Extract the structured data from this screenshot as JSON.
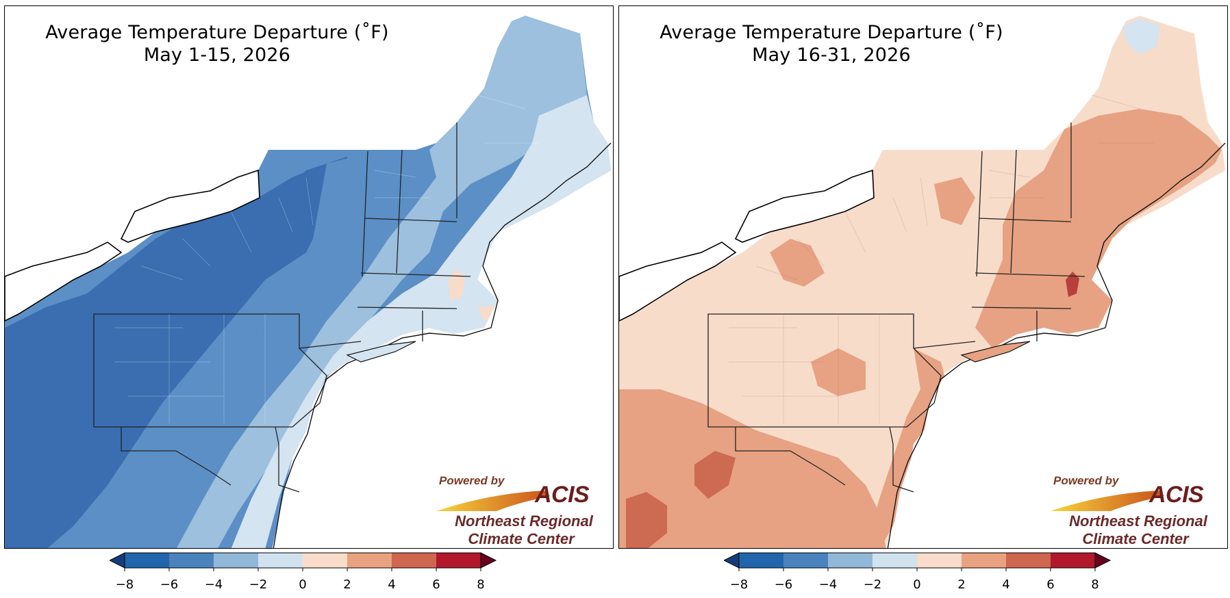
{
  "panels": [
    {
      "title_line1": "Average Temperature Departure ($^\\circ$F)",
      "title_display_line1": "Average Temperature Departure (˚F)",
      "title_line2": "May 1-15, 2026",
      "dominant_class": "cool"
    },
    {
      "title_line1": "Average Temperature Departure ($^\\circ$F)",
      "title_display_line1": "Average Temperature Departure (˚F)",
      "title_line2": "May 16-31, 2026",
      "dominant_class": "warm"
    }
  ],
  "logo": {
    "powered_by": "Powered by",
    "acis": "ACIS",
    "line1": "Northeast Regional",
    "line2": "Climate Center"
  },
  "colorbar": {
    "ticks": [
      "−8",
      "−6",
      "−4",
      "−2",
      "0",
      "2",
      "4",
      "6",
      "8"
    ],
    "colors": [
      "#2166ac",
      "#4a82bd",
      "#92b8d9",
      "#d1e2ef",
      "#f9dcc9",
      "#e9a27f",
      "#cf6650",
      "#b2182b"
    ],
    "under_color": "#153d7a",
    "over_color": "#67001f"
  },
  "palette": {
    "cool_dark": "#3b6fb0",
    "cool_mid": "#5b8fc6",
    "cool_light": "#9cc0de",
    "cool_pale": "#d4e4f0",
    "warm_pale": "#f8dcca",
    "warm_mid": "#e6a283",
    "warm_dark": "#cc6a52",
    "warm_deep": "#b8403a"
  }
}
